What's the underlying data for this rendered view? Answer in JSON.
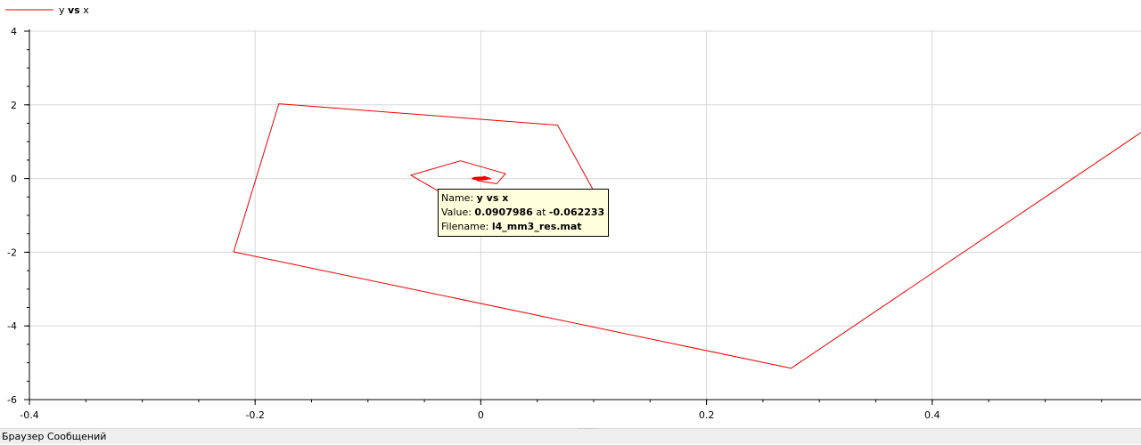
{
  "chart_data": {
    "type": "line",
    "legend": {
      "entries": [
        {
          "label_plain": "y",
          "label_bold": "vs",
          "label_rest": "x",
          "color": "#ee0000"
        }
      ],
      "placement": "top-left"
    },
    "xlim": [
      -0.4,
      0.585
    ],
    "ylim": [
      -6,
      4
    ],
    "x_ticks": [
      -0.4,
      -0.2,
      0,
      0.2,
      0.4
    ],
    "x_tick_labels": [
      "-0.4",
      "-0.2",
      "0",
      "0.2",
      "0.4"
    ],
    "y_ticks": [
      -6,
      -4,
      -2,
      0,
      2,
      4
    ],
    "y_tick_labels": [
      "-6",
      "-4",
      "-2",
      "0",
      "2",
      "4"
    ],
    "x_minor_step": 0.05,
    "y_minor_step": 0.5,
    "grid": true,
    "series": [
      {
        "name": "y vs x",
        "color": "#ee0000",
        "x": [
          0.585,
          0.275,
          -0.219,
          -0.179,
          0.068,
          0.106,
          0.087,
          -0.037,
          -0.062,
          -0.018,
          0.022,
          0.014,
          -0.003,
          0.003,
          0.009,
          -0.001,
          0.002
        ],
        "y": [
          1.25,
          -5.15,
          -1.99,
          2.03,
          1.45,
          -0.67,
          -0.72,
          -0.35,
          0.09,
          0.48,
          0.13,
          -0.14,
          -0.06,
          0.06,
          -0.01,
          0.01,
          0.0
        ]
      }
    ],
    "spiral": {
      "center_x": 0.0,
      "center_y": 0.0,
      "radius_x": 0.008,
      "radius_y": 0.09
    }
  },
  "tooltip": {
    "name_label": "Name: ",
    "name_value": "y vs x",
    "value_label": "Value: ",
    "value_value": "0.0907986",
    "at_label": " at ",
    "at_value": "-0.062233",
    "filename_label": "Filename: ",
    "filename_value": "l4_mm3_res.mat"
  },
  "status_bar": {
    "label": "Браузер Сообщений"
  }
}
